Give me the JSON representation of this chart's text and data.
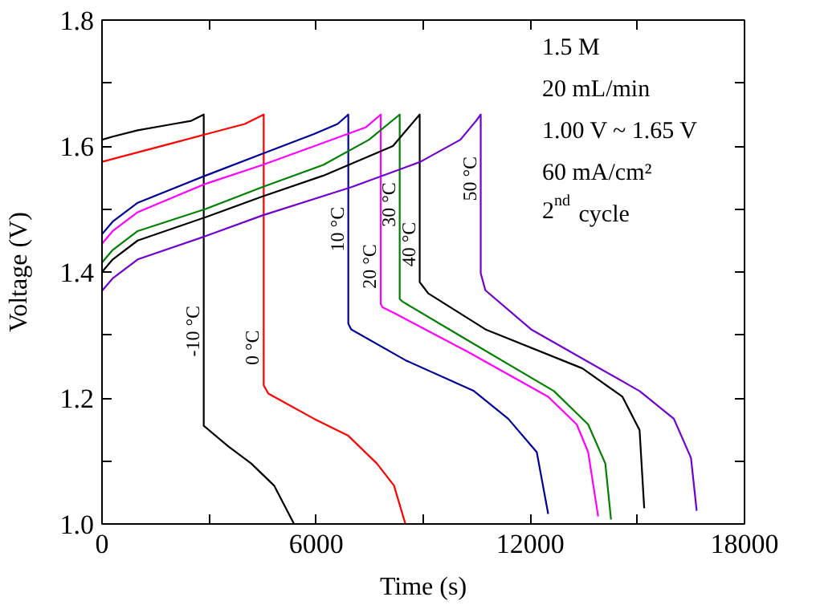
{
  "chart_data": {
    "type": "line",
    "xlabel": "Time (s)",
    "ylabel": "Voltage (V)",
    "xlim": [
      0,
      18000
    ],
    "ylim": [
      1.0,
      1.8
    ],
    "xticks": [
      0,
      {
        "value": 3000,
        "label": null
      },
      6000,
      {
        "value": 9000,
        "label": null
      },
      12000,
      {
        "value": 15000,
        "label": null
      },
      18000
    ],
    "yticks": [
      {
        "value": 1.0,
        "label": "1.0"
      },
      {
        "value": 1.1,
        "label": null
      },
      1.2,
      {
        "value": 1.3,
        "label": null
      },
      1.4,
      {
        "value": 1.5,
        "label": null
      },
      1.6,
      {
        "value": 1.7,
        "label": null
      },
      1.8
    ],
    "annotations": [
      "1.5 M",
      "20 mL/min",
      "1.00 V ~ 1.65 V",
      "60 mA/cm²",
      "2$^{nd}$ cycle"
    ],
    "line_style": "solid",
    "series": [
      {
        "name": "-10 °C",
        "color": "#000000",
        "x": [
          0,
          300,
          1000,
          2000,
          2500,
          2850,
          2850,
          3540,
          4180,
          4820,
          5380
        ],
        "values": [
          1.61,
          1.615,
          1.625,
          1.635,
          1.64,
          1.65,
          1.156,
          1.123,
          1.096,
          1.061,
          1.0
        ]
      },
      {
        "name": "0 °C",
        "color": "#ff0000",
        "x": [
          0,
          1000,
          2000,
          3000,
          4000,
          4530,
          4530,
          4660,
          5940,
          6900,
          7700,
          8180,
          8500
        ],
        "values": [
          1.575,
          1.59,
          1.605,
          1.62,
          1.635,
          1.65,
          1.22,
          1.207,
          1.167,
          1.14,
          1.096,
          1.061,
          1.0
        ]
      },
      {
        "name": "10 °C",
        "color": "#000099",
        "x": [
          0,
          300,
          1000,
          2900,
          4500,
          5940,
          6600,
          6900,
          6900,
          6980,
          8500,
          10420,
          11380,
          12180,
          12500
        ],
        "values": [
          1.46,
          1.48,
          1.51,
          1.553,
          1.588,
          1.619,
          1.635,
          1.65,
          1.318,
          1.309,
          1.26,
          1.211,
          1.167,
          1.114,
          1.016
        ]
      },
      {
        "name": "20 °C",
        "color": "#ff00ff",
        "x": [
          0,
          300,
          1000,
          2900,
          4500,
          6200,
          7400,
          7810,
          7810,
          7860,
          8180,
          10260,
          12500,
          13300,
          13620,
          13900
        ],
        "values": [
          1.445,
          1.465,
          1.495,
          1.54,
          1.57,
          1.605,
          1.63,
          1.65,
          1.349,
          1.344,
          1.335,
          1.273,
          1.202,
          1.158,
          1.114,
          1.012
        ]
      },
      {
        "name": "30 °C",
        "color": "#008000",
        "x": [
          0,
          300,
          1000,
          2900,
          4500,
          6200,
          7480,
          8340,
          8340,
          8420,
          10260,
          12660,
          13620,
          14100,
          14260
        ],
        "values": [
          1.415,
          1.435,
          1.465,
          1.5,
          1.535,
          1.57,
          1.61,
          1.65,
          1.357,
          1.353,
          1.291,
          1.211,
          1.158,
          1.096,
          1.007
        ]
      },
      {
        "name": "40 °C",
        "color": "#000000",
        "x": [
          0,
          300,
          1000,
          2900,
          4500,
          6200,
          8150,
          8900,
          8900,
          8980,
          9140,
          10740,
          13460,
          14580,
          15060,
          15190
        ],
        "values": [
          1.4,
          1.42,
          1.45,
          1.487,
          1.52,
          1.553,
          1.6,
          1.65,
          1.384,
          1.378,
          1.366,
          1.309,
          1.247,
          1.202,
          1.149,
          1.025
        ]
      },
      {
        "name": "50 °C",
        "color": "#7000d0",
        "x": [
          0,
          300,
          1000,
          2900,
          4500,
          7000,
          8920,
          10040,
          10480,
          10610,
          10610,
          10740,
          12020,
          15060,
          16020,
          16500,
          16660
        ],
        "values": [
          1.37,
          1.39,
          1.42,
          1.457,
          1.49,
          1.535,
          1.575,
          1.61,
          1.64,
          1.65,
          1.398,
          1.371,
          1.309,
          1.211,
          1.167,
          1.105,
          1.021
        ]
      }
    ]
  }
}
